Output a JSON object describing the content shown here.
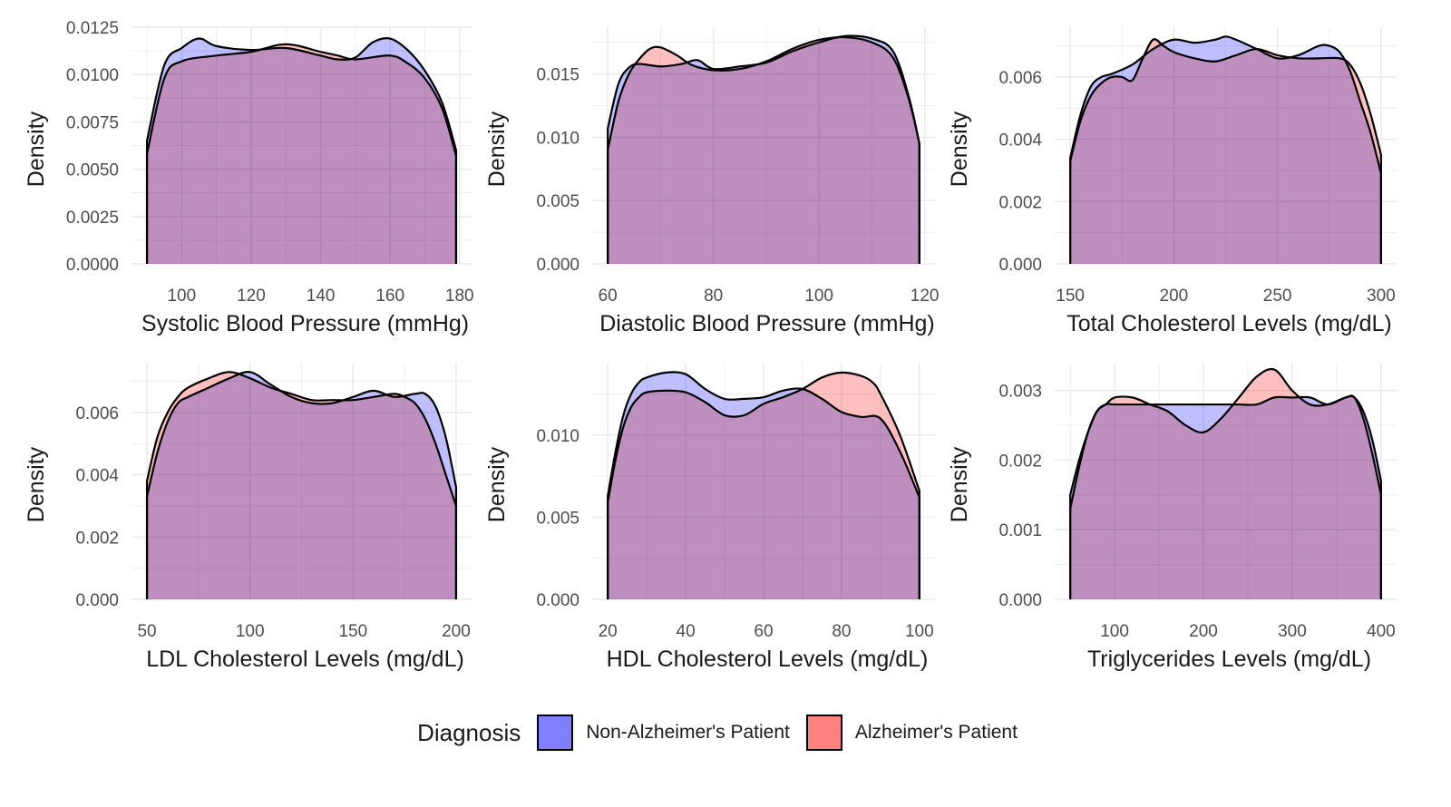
{
  "legend": {
    "title": "Diagnosis",
    "entries": [
      {
        "label": "Non-Alzheimer's Patient",
        "color": "#8080ff"
      },
      {
        "label": "Alzheimer's Patient",
        "color": "#ff8080"
      }
    ]
  },
  "colors": {
    "non_alz": "#8080ff",
    "alz": "#ff8080",
    "grid": "#ebebeb",
    "axis_text": "#4d4d4d",
    "title_text": "#1a1a1a",
    "overlap": "#c03c7b"
  },
  "chart_data": [
    {
      "type": "area",
      "xlabel": "Systolic Blood Pressure (mmHg)",
      "ylabel": "Density",
      "xlim": [
        90,
        179
      ],
      "ylim": [
        0,
        0.0125
      ],
      "xticks": [
        100,
        120,
        140,
        160,
        180
      ],
      "yticks": [
        0.0,
        0.0025,
        0.005,
        0.0075,
        0.01,
        0.0125
      ],
      "ytick_labels": [
        "0.0000",
        "0.0025",
        "0.0050",
        "0.0075",
        "0.0100",
        "0.0125"
      ],
      "series": [
        {
          "name": "Non-Alzheimer's Patient",
          "x": [
            90,
            95,
            100,
            105,
            110,
            120,
            130,
            140,
            145,
            150,
            155,
            160,
            165,
            170,
            175,
            179
          ],
          "y": [
            0.0065,
            0.0105,
            0.0114,
            0.0119,
            0.0115,
            0.0113,
            0.0114,
            0.011,
            0.0108,
            0.0109,
            0.0117,
            0.0119,
            0.0113,
            0.0102,
            0.0085,
            0.006
          ]
        },
        {
          "name": "Alzheimer's Patient",
          "x": [
            90,
            95,
            100,
            110,
            120,
            130,
            140,
            145,
            150,
            160,
            165,
            170,
            175,
            179
          ],
          "y": [
            0.0058,
            0.0098,
            0.0107,
            0.011,
            0.0112,
            0.0116,
            0.0112,
            0.011,
            0.0108,
            0.011,
            0.0106,
            0.0098,
            0.0082,
            0.0057
          ]
        }
      ]
    },
    {
      "type": "area",
      "xlabel": "Diastolic Blood Pressure (mmHg)",
      "ylabel": "Density",
      "xlim": [
        60,
        119
      ],
      "ylim": [
        0,
        0.0187
      ],
      "xticks": [
        60,
        80,
        100,
        120
      ],
      "yticks": [
        0.0,
        0.005,
        0.01,
        0.015
      ],
      "ytick_labels": [
        "0.000",
        "0.005",
        "0.010",
        "0.015"
      ],
      "series": [
        {
          "name": "Non-Alzheimer's Patient",
          "x": [
            60,
            62,
            64,
            66,
            70,
            74,
            77,
            80,
            85,
            90,
            95,
            100,
            105,
            110,
            114,
            117,
            119
          ],
          "y": [
            0.0107,
            0.0142,
            0.0155,
            0.0158,
            0.0156,
            0.0158,
            0.0161,
            0.0154,
            0.0156,
            0.0159,
            0.0168,
            0.0175,
            0.018,
            0.0178,
            0.0168,
            0.0132,
            0.0095
          ]
        },
        {
          "name": "Alzheimer's Patient",
          "x": [
            60,
            62,
            64,
            66,
            68,
            70,
            73,
            76,
            80,
            85,
            90,
            95,
            100,
            105,
            110,
            114,
            117,
            119
          ],
          "y": [
            0.009,
            0.0128,
            0.015,
            0.0162,
            0.017,
            0.0171,
            0.0165,
            0.0157,
            0.0153,
            0.0154,
            0.016,
            0.017,
            0.0177,
            0.0179,
            0.0175,
            0.0163,
            0.013,
            0.0095
          ]
        }
      ]
    },
    {
      "type": "area",
      "xlabel": "Total Cholesterol Levels (mg/dL)",
      "ylabel": "Density",
      "xlim": [
        150,
        300
      ],
      "ylim": [
        0,
        0.0076
      ],
      "xticks": [
        150,
        200,
        250,
        300
      ],
      "yticks": [
        0.0,
        0.002,
        0.004,
        0.006
      ],
      "ytick_labels": [
        "0.000",
        "0.002",
        "0.004",
        "0.006"
      ],
      "series": [
        {
          "name": "Non-Alzheimer's Patient",
          "x": [
            150,
            155,
            160,
            165,
            170,
            180,
            190,
            200,
            210,
            220,
            225,
            230,
            240,
            250,
            260,
            270,
            275,
            280,
            285,
            290,
            295,
            300
          ],
          "y": [
            0.0034,
            0.0048,
            0.0057,
            0.006,
            0.0061,
            0.0064,
            0.0069,
            0.0072,
            0.0071,
            0.0072,
            0.0073,
            0.0072,
            0.0069,
            0.0066,
            0.0067,
            0.007,
            0.007,
            0.0068,
            0.0062,
            0.0052,
            0.0042,
            0.0029
          ]
        },
        {
          "name": "Alzheimer's Patient",
          "x": [
            150,
            155,
            160,
            165,
            170,
            175,
            180,
            185,
            190,
            195,
            200,
            210,
            220,
            230,
            240,
            250,
            260,
            270,
            280,
            285,
            290,
            295,
            300
          ],
          "y": [
            0.0033,
            0.0046,
            0.0054,
            0.0058,
            0.006,
            0.006,
            0.0059,
            0.0066,
            0.0072,
            0.007,
            0.0068,
            0.0066,
            0.0065,
            0.0067,
            0.0069,
            0.0067,
            0.0066,
            0.0066,
            0.0066,
            0.0064,
            0.0058,
            0.0048,
            0.0035
          ]
        }
      ]
    },
    {
      "type": "area",
      "xlabel": "LDL Cholesterol Levels (mg/dL)",
      "ylabel": "Density",
      "xlim": [
        50,
        200
      ],
      "ylim": [
        0,
        0.0076
      ],
      "xticks": [
        50,
        100,
        150,
        200
      ],
      "yticks": [
        0.0,
        0.002,
        0.004,
        0.006
      ],
      "ytick_labels": [
        "0.000",
        "0.002",
        "0.004",
        "0.006"
      ],
      "series": [
        {
          "name": "Non-Alzheimer's Patient",
          "x": [
            50,
            55,
            60,
            65,
            70,
            80,
            90,
            100,
            110,
            120,
            130,
            140,
            150,
            160,
            170,
            180,
            185,
            190,
            195,
            200
          ],
          "y": [
            0.0033,
            0.0047,
            0.0057,
            0.0063,
            0.0065,
            0.0068,
            0.0071,
            0.0073,
            0.0069,
            0.0065,
            0.0063,
            0.0063,
            0.0065,
            0.0067,
            0.0065,
            0.0066,
            0.0066,
            0.0062,
            0.0052,
            0.0036
          ]
        },
        {
          "name": "Alzheimer's Patient",
          "x": [
            50,
            55,
            60,
            65,
            70,
            80,
            90,
            100,
            110,
            120,
            130,
            140,
            150,
            160,
            170,
            175,
            180,
            185,
            190,
            195,
            200
          ],
          "y": [
            0.0038,
            0.0052,
            0.006,
            0.0065,
            0.0068,
            0.0071,
            0.0073,
            0.0071,
            0.0068,
            0.0066,
            0.0064,
            0.0064,
            0.0064,
            0.0065,
            0.0066,
            0.0065,
            0.0063,
            0.0058,
            0.005,
            0.004,
            0.003
          ]
        }
      ]
    },
    {
      "type": "area",
      "xlabel": "HDL Cholesterol Levels (mg/dL)",
      "ylabel": "Density",
      "xlim": [
        20,
        100
      ],
      "ylim": [
        0,
        0.0144
      ],
      "xticks": [
        20,
        40,
        60,
        80,
        100
      ],
      "yticks": [
        0.0,
        0.005,
        0.01
      ],
      "ytick_labels": [
        "0.000",
        "0.005",
        "0.010"
      ],
      "series": [
        {
          "name": "Non-Alzheimer's Patient",
          "x": [
            20,
            22,
            24,
            26,
            28,
            30,
            35,
            40,
            45,
            50,
            55,
            60,
            65,
            70,
            75,
            80,
            85,
            90,
            95,
            100
          ],
          "y": [
            0.0063,
            0.009,
            0.0112,
            0.0125,
            0.0132,
            0.0135,
            0.0138,
            0.0137,
            0.0128,
            0.0122,
            0.0122,
            0.0123,
            0.0127,
            0.0128,
            0.0122,
            0.0114,
            0.0111,
            0.011,
            0.009,
            0.0062
          ]
        },
        {
          "name": "Alzheimer's Patient",
          "x": [
            20,
            22,
            24,
            26,
            28,
            30,
            35,
            40,
            45,
            50,
            55,
            60,
            65,
            70,
            75,
            80,
            85,
            88,
            90,
            95,
            100
          ],
          "y": [
            0.0059,
            0.0085,
            0.0105,
            0.0117,
            0.0123,
            0.0126,
            0.0127,
            0.0126,
            0.012,
            0.0112,
            0.0112,
            0.0119,
            0.0123,
            0.0128,
            0.0135,
            0.0138,
            0.0136,
            0.0132,
            0.0125,
            0.01,
            0.0066
          ]
        }
      ]
    },
    {
      "type": "area",
      "xlabel": "Triglycerides Levels (mg/dL)",
      "ylabel": "Density",
      "xlim": [
        50,
        400
      ],
      "ylim": [
        0,
        0.0034
      ],
      "xticks": [
        100,
        200,
        300,
        400
      ],
      "yticks": [
        0.0,
        0.001,
        0.002,
        0.003
      ],
      "ytick_labels": [
        "0.000",
        "0.001",
        "0.002",
        "0.003"
      ],
      "series": [
        {
          "name": "Non-Alzheimer's Patient",
          "x": [
            50,
            60,
            70,
            80,
            90,
            100,
            120,
            140,
            160,
            180,
            200,
            220,
            240,
            260,
            280,
            300,
            320,
            340,
            360,
            370,
            380,
            390,
            400
          ],
          "y": [
            0.0015,
            0.002,
            0.0024,
            0.0027,
            0.0028,
            0.0028,
            0.0028,
            0.0028,
            0.0028,
            0.0028,
            0.0028,
            0.0028,
            0.0028,
            0.0028,
            0.0029,
            0.0029,
            0.0029,
            0.0028,
            0.0029,
            0.0029,
            0.0027,
            0.0023,
            0.0017
          ]
        },
        {
          "name": "Alzheimer's Patient",
          "x": [
            50,
            60,
            70,
            80,
            90,
            100,
            120,
            140,
            160,
            180,
            200,
            220,
            240,
            260,
            280,
            300,
            320,
            340,
            360,
            370,
            380,
            390,
            400
          ],
          "y": [
            0.0013,
            0.0019,
            0.0024,
            0.0027,
            0.0028,
            0.0029,
            0.0029,
            0.0028,
            0.0027,
            0.0025,
            0.0024,
            0.0026,
            0.0029,
            0.0032,
            0.0033,
            0.003,
            0.0028,
            0.0028,
            0.0029,
            0.0029,
            0.0026,
            0.0021,
            0.0015
          ]
        }
      ]
    }
  ]
}
